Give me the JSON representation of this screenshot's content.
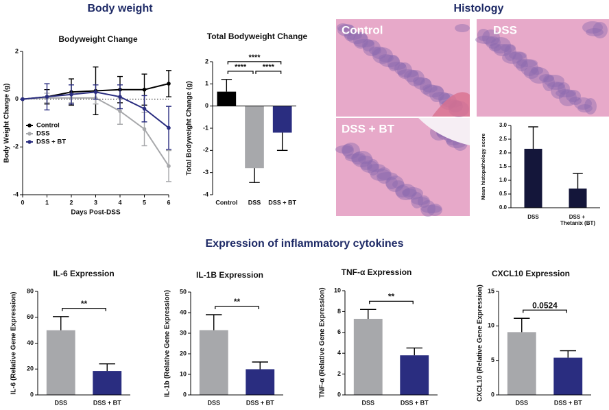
{
  "sections": {
    "body_weight": "Body weight",
    "histology": "Histology",
    "cytokines": "Expression of inflammatory cytokines"
  },
  "images": [
    {
      "label": "Control"
    },
    {
      "label": "DSS"
    },
    {
      "label": "DSS + BT"
    }
  ],
  "chart_data": [
    {
      "type": "line",
      "title": "Bodyweight Change",
      "x_label": "Days Post-DSS",
      "y_label": "Body Weight Change (g)",
      "x": [
        0,
        1,
        2,
        3,
        4,
        5,
        6
      ],
      "xlim": [
        0,
        6
      ],
      "xticks": [
        0,
        1,
        2,
        3,
        4,
        5,
        6
      ],
      "ylim": [
        -4,
        2
      ],
      "yticks": [
        -4,
        -2,
        0,
        2
      ],
      "reference_line": 0,
      "legend": "left",
      "series": [
        {
          "name": "Control",
          "color": "#000000",
          "values": [
            0,
            0.1,
            0.3,
            0.35,
            0.4,
            0.4,
            0.65
          ],
          "errors": [
            0,
            0.3,
            0.55,
            1.0,
            0.55,
            0.65,
            0.55
          ]
        },
        {
          "name": "DSS",
          "color": "#a7a8ab",
          "values": [
            0,
            0.05,
            0.05,
            0.05,
            -0.5,
            -1.25,
            -2.8
          ],
          "errors": [
            0,
            0.2,
            0.2,
            0.25,
            0.55,
            0.7,
            0.65
          ]
        },
        {
          "name": "DSS + BT",
          "color": "#2a2d80",
          "values": [
            0,
            0.1,
            0.2,
            0.3,
            0.1,
            -0.4,
            -1.2
          ],
          "errors": [
            0,
            0.55,
            0.4,
            0.3,
            0.5,
            0.55,
            0.9
          ]
        }
      ]
    },
    {
      "type": "bar",
      "title": "Total Bodyweight Change",
      "y_label": "Total Bodyweight Change (g)",
      "categories": [
        "Control",
        "DSS",
        "DSS + BT"
      ],
      "values": [
        0.65,
        -2.8,
        -1.2
      ],
      "errors": [
        0.55,
        0.65,
        0.8
      ],
      "colors": [
        "#000000",
        "#a7a8ab",
        "#2a2d80"
      ],
      "ylim": [
        -4,
        2
      ],
      "yticks": [
        -4,
        -3,
        -2,
        -1,
        0,
        1,
        2
      ],
      "brackets": [
        {
          "between": [
            "Control",
            "DSS + BT"
          ],
          "label": "****"
        },
        {
          "between": [
            "Control",
            "DSS"
          ],
          "label": "****"
        },
        {
          "between": [
            "DSS",
            "DSS + BT"
          ],
          "label": "****"
        }
      ]
    },
    {
      "type": "bar",
      "y_label": "Mean histopathology score",
      "categories": [
        "DSS",
        "DSS + Thetanix (BT)"
      ],
      "values": [
        2.15,
        0.7
      ],
      "errors": [
        0.8,
        0.55
      ],
      "colors": [
        "#14163a",
        "#14163a"
      ],
      "ylim": [
        0,
        3
      ],
      "yticks": [
        {
          "value": 0,
          "label": "0.0"
        },
        0.5,
        {
          "value": 1,
          "label": "1.0"
        },
        1.5,
        {
          "value": 2,
          "label": "2.0"
        },
        2.5,
        {
          "value": 3,
          "label": "3.0"
        }
      ]
    },
    {
      "type": "bar",
      "title": "IL-6 Expression",
      "y_label": "IL-6 (Relative Gene Expression)",
      "categories": [
        "DSS",
        "DSS + BT"
      ],
      "values": [
        50,
        18.5
      ],
      "errors": [
        10.5,
        5.5
      ],
      "colors": [
        "#a7a8ab",
        "#2a2d80"
      ],
      "ylim": [
        0,
        80
      ],
      "yticks": [
        0,
        20,
        40,
        60,
        80
      ],
      "brackets": [
        {
          "between": [
            "DSS",
            "DSS + BT"
          ],
          "label": "**"
        }
      ]
    },
    {
      "type": "bar",
      "title": "IL-1B Expression",
      "y_label": "IL-1b (Relative Gene Expression)",
      "categories": [
        "DSS",
        "DSS + BT"
      ],
      "values": [
        31.5,
        12.5
      ],
      "errors": [
        7.5,
        3.5
      ],
      "colors": [
        "#a7a8ab",
        "#2a2d80"
      ],
      "ylim": [
        0,
        50
      ],
      "yticks": [
        0,
        10,
        20,
        30,
        40,
        50
      ],
      "brackets": [
        {
          "between": [
            "DSS",
            "DSS + BT"
          ],
          "label": "**"
        }
      ]
    },
    {
      "type": "bar",
      "title": "TNF-α Expression",
      "y_label": "TNF-α (Relative Gene Expression)",
      "categories": [
        "DSS",
        "DSS + BT"
      ],
      "values": [
        7.3,
        3.8
      ],
      "errors": [
        0.9,
        0.7
      ],
      "colors": [
        "#a7a8ab",
        "#2a2d80"
      ],
      "ylim": [
        0,
        10
      ],
      "yticks": [
        0,
        2,
        4,
        6,
        8,
        10
      ],
      "brackets": [
        {
          "between": [
            "DSS",
            "DSS + BT"
          ],
          "label": "**"
        }
      ]
    },
    {
      "type": "bar",
      "title": "CXCL10 Expression",
      "y_label": "CXCL10 (Relative Gene Expression)",
      "categories": [
        "DSS",
        "DSS + BT"
      ],
      "values": [
        9.1,
        5.4
      ],
      "errors": [
        2.0,
        1.0
      ],
      "colors": [
        "#a7a8ab",
        "#2a2d80"
      ],
      "ylim": [
        0,
        15
      ],
      "yticks": [
        0,
        5,
        10,
        15
      ],
      "brackets": [
        {
          "between": [
            "DSS",
            "DSS + BT"
          ],
          "label": "0.0524"
        }
      ]
    }
  ]
}
